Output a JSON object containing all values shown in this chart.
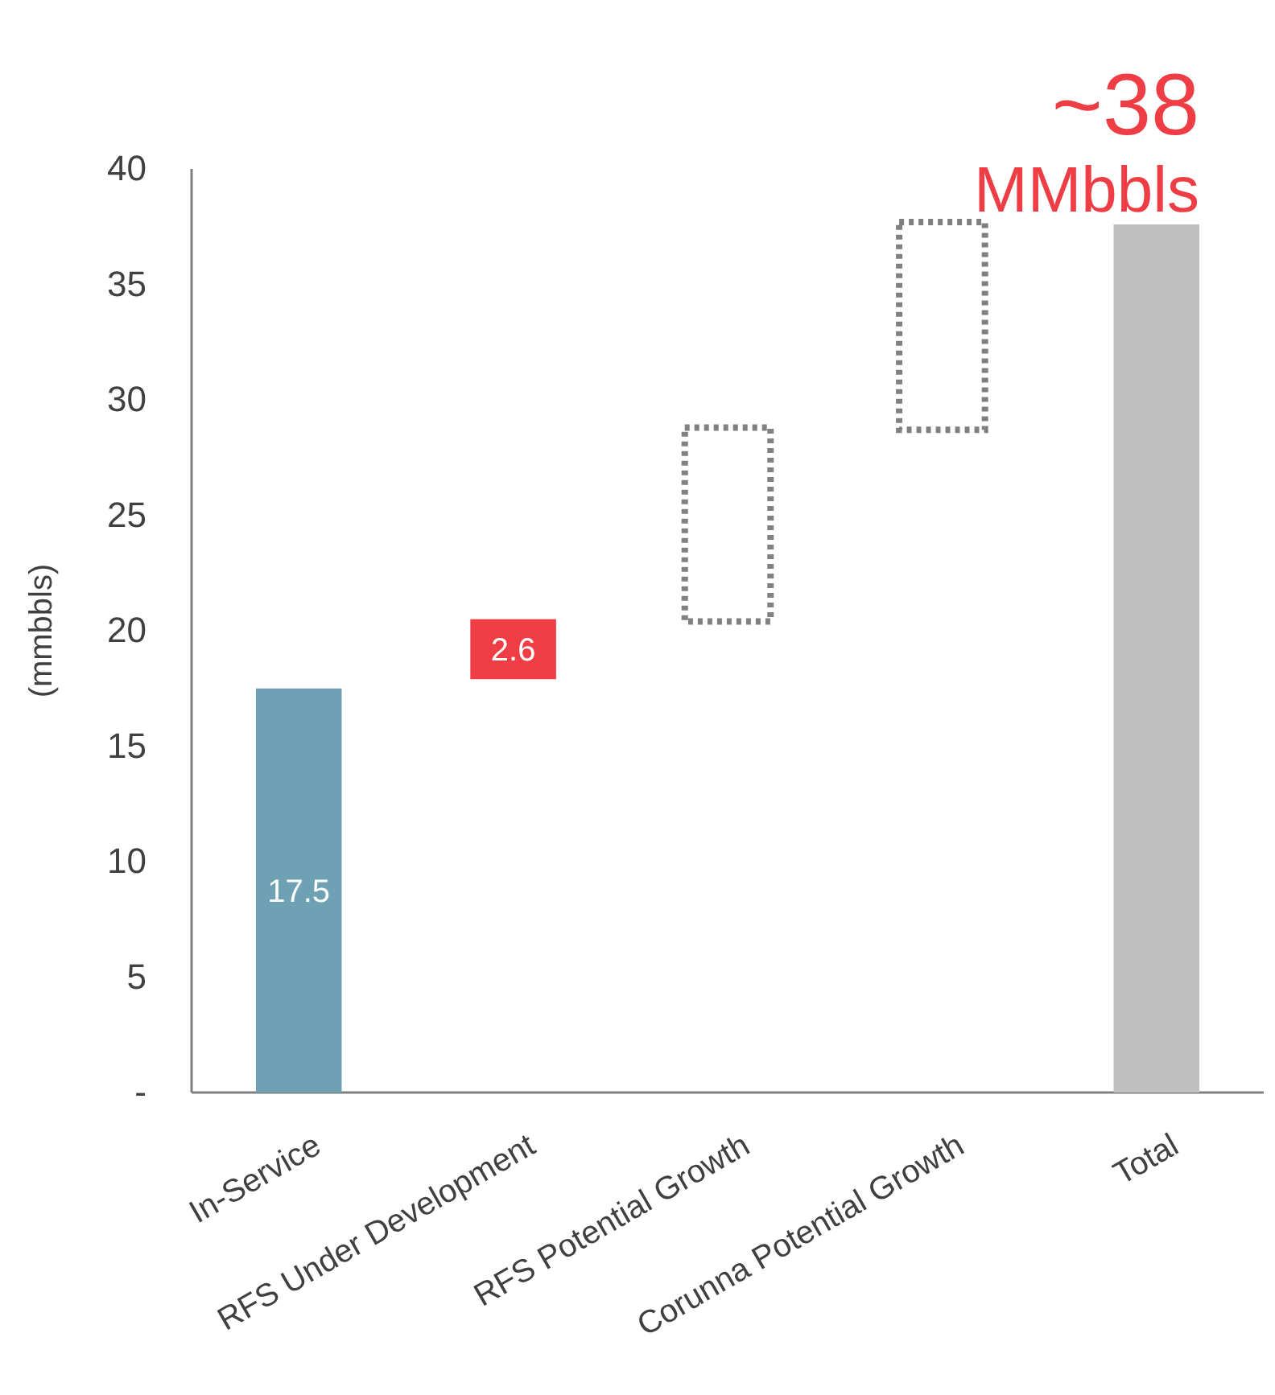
{
  "chart_data": {
    "type": "bar",
    "ylabel": "(mmbbls)",
    "categories": [
      "In-Service",
      "RFS Under Development",
      "RFS Potential Growth",
      "Corunna Potential Growth",
      "Total"
    ],
    "series": [
      {
        "colors": [
          "#6fa1b5",
          "#ee3d44",
          null,
          null,
          "#bfbfbf"
        ],
        "values": [
          17.5,
          2.6,
          null,
          null,
          37.6
        ],
        "base": [
          0,
          17.9,
          null,
          null,
          0
        ],
        "value_labels": [
          "17.5",
          "2.6",
          null,
          null,
          null
        ]
      },
      {
        "color": "#808080",
        "line_style": "dotted",
        "values": [
          null,
          null,
          8.4,
          9.0,
          null
        ],
        "base": [
          null,
          null,
          20.4,
          28.7,
          null
        ]
      }
    ],
    "ylim": [
      0,
      40
    ],
    "yticks": [
      {
        "value": 0,
        "label": "-"
      },
      5,
      10,
      15,
      20,
      25,
      30,
      35,
      40
    ],
    "annotations": [
      {
        "text": "~38 MMbbls",
        "x": "Total",
        "y": 37.6
      }
    ]
  }
}
